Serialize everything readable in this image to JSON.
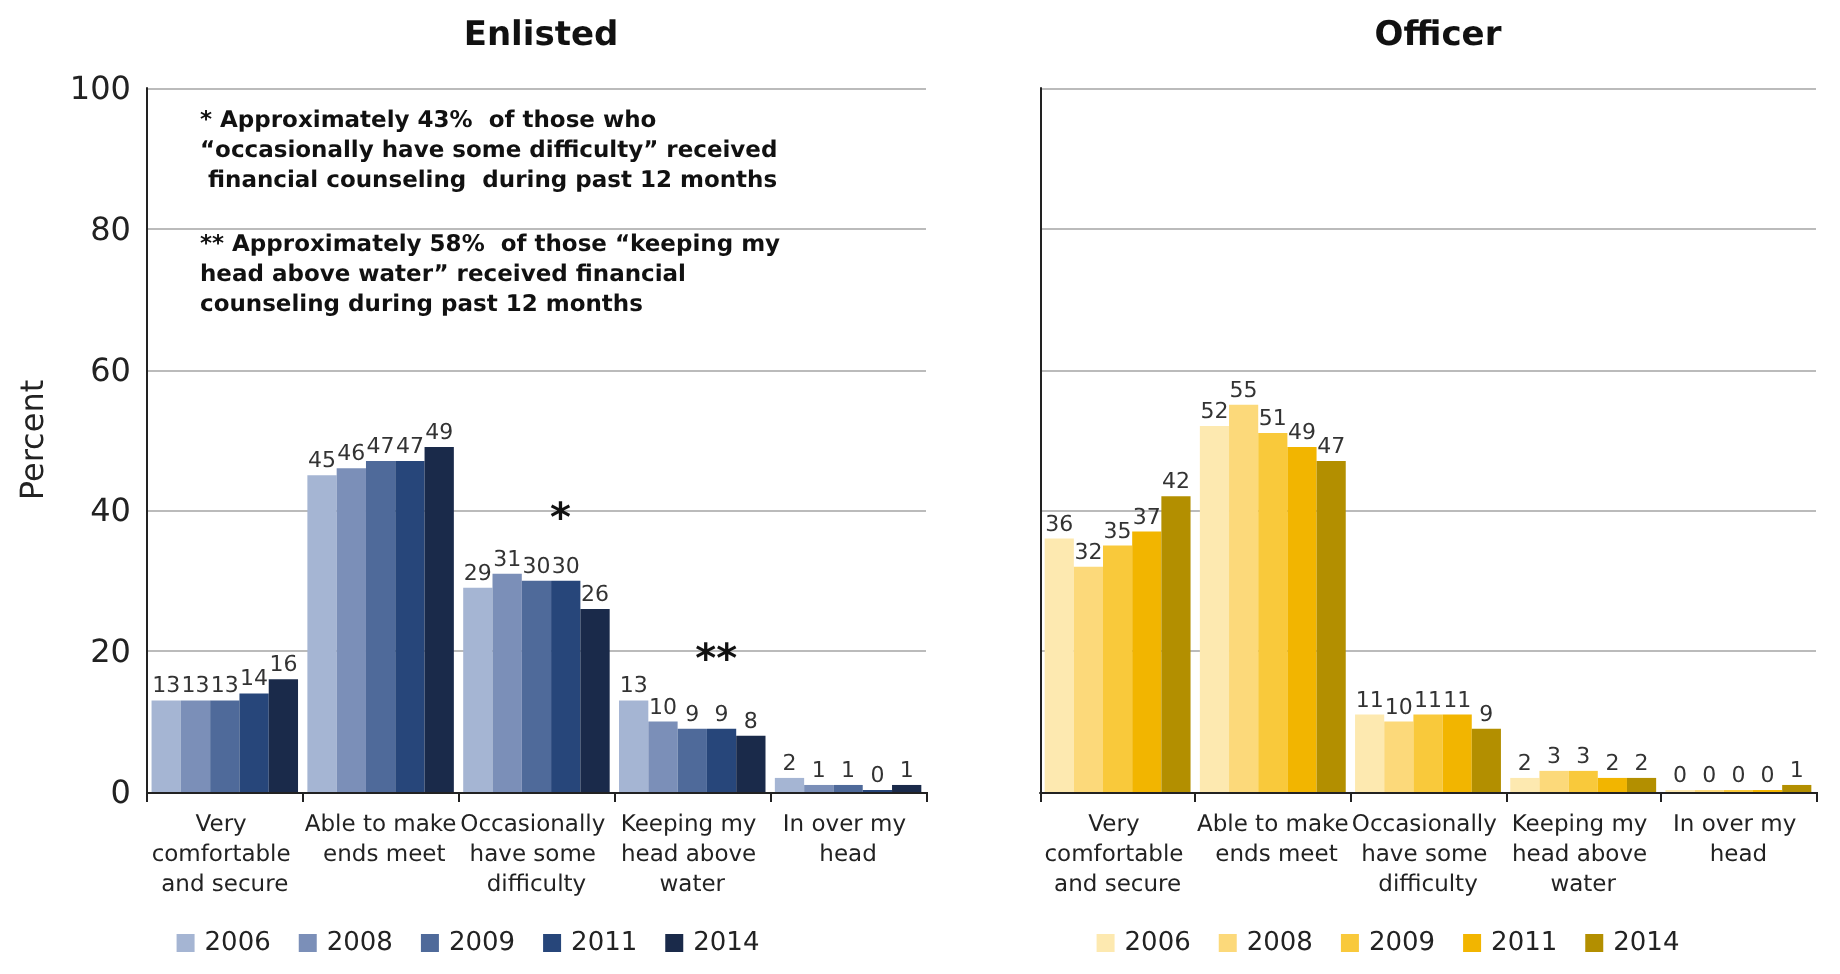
{
  "chart_data": [
    {
      "type": "bar",
      "title": "Enlisted",
      "ylabel": "Percent",
      "categories": [
        "Very comfortable and secure",
        "Able to make ends meet",
        "Occasionally have some difficulty",
        "Keeping my head above water",
        "In over my head"
      ],
      "series": [
        {
          "name": "2006",
          "color": "#a5b5d3",
          "values": [
            13,
            45,
            29,
            13,
            2
          ]
        },
        {
          "name": "2008",
          "color": "#7b8fb8",
          "values": [
            13,
            46,
            31,
            10,
            1
          ]
        },
        {
          "name": "2009",
          "color": "#4f6a9a",
          "values": [
            13,
            47,
            30,
            9,
            1
          ]
        },
        {
          "name": "2011",
          "color": "#27467a",
          "values": [
            14,
            47,
            30,
            9,
            0
          ]
        },
        {
          "name": "2014",
          "color": "#1a2a4a",
          "values": [
            16,
            49,
            26,
            8,
            1
          ]
        }
      ],
      "ylim": [
        0,
        100
      ],
      "yticks": [
        0,
        20,
        40,
        60,
        80,
        100
      ],
      "grid": "y",
      "legend": "bottom",
      "data_labels": true,
      "annotations": [
        "* Approximately 43%  of those who “occasionally have some difficulty” received financial counseling  during past 12 months",
        "** Approximately 58%  of those “keeping my head above water” received financial counseling during past 12 months",
        "*",
        "**"
      ]
    },
    {
      "type": "bar",
      "title": "Officer",
      "categories": [
        "Very comfortable and secure",
        "Able to make ends meet",
        "Occasionally have some difficulty",
        "Keeping my head above water",
        "In over my head"
      ],
      "series": [
        {
          "name": "2006",
          "color": "#fde9b0",
          "values": [
            36,
            52,
            11,
            2,
            0
          ]
        },
        {
          "name": "2008",
          "color": "#fcd97a",
          "values": [
            32,
            55,
            10,
            3,
            0
          ]
        },
        {
          "name": "2009",
          "color": "#f9c93b",
          "values": [
            35,
            51,
            11,
            3,
            0
          ]
        },
        {
          "name": "2011",
          "color": "#f2b500",
          "values": [
            37,
            49,
            11,
            2,
            0
          ]
        },
        {
          "name": "2014",
          "color": "#b38f00",
          "values": [
            42,
            47,
            9,
            2,
            1
          ]
        }
      ],
      "ylim": [
        0,
        100
      ],
      "yticks": [
        0,
        20,
        40,
        60,
        80,
        100
      ],
      "grid": "y",
      "legend": "bottom",
      "data_labels": true,
      "tick_labels": "x"
    }
  ]
}
